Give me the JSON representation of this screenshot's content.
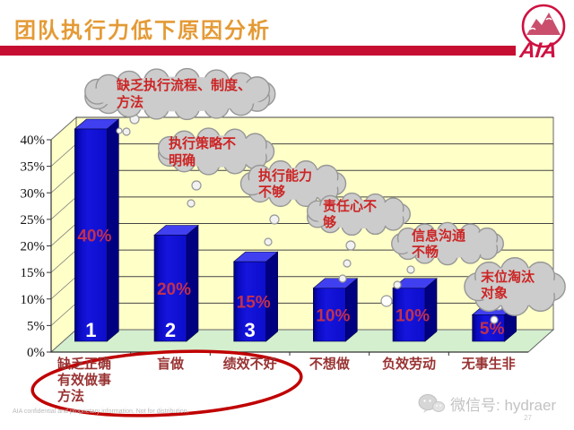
{
  "slide": {
    "title": "团队执行力低下原因分析",
    "logo_text": "AIA",
    "footer_disclaimer": "AIA confidential and proprietary information. Not for distribution.",
    "watermark_label": "微信号: hydraer",
    "page_number": "27"
  },
  "colors": {
    "title_orange": "#E49A35",
    "header_bar_red": "#C60E33",
    "logo_red": "#CE1141",
    "wall_yellow": "#FFFFC8",
    "floor_green": "#D4EFCE",
    "bar_front": "#0D0DCC",
    "bar_side": "#000080",
    "bar_top": "#4040F0",
    "value_label_red": "#C03050",
    "rank_label_white": "#FFFFFF",
    "cloud_fill": "#CCCCCC",
    "cloud_stroke": "#979797",
    "cloud_text_red": "#CC2525",
    "category_maroon": "#993333",
    "ellipse_red": "#C00000",
    "axis_line": "#333333",
    "gridline": "#444444"
  },
  "chart_data": {
    "type": "bar",
    "projection": "3d",
    "title": "",
    "xlabel": "",
    "ylabel": "",
    "ylim": [
      0,
      40
    ],
    "grid": true,
    "legend": false,
    "y_ticks": [
      "0%",
      "5%",
      "10%",
      "15%",
      "20%",
      "25%",
      "30%",
      "35%",
      "40%"
    ],
    "categories": [
      "缺乏正确\n有效做事\n方法",
      "盲做",
      "绩效不好",
      "不想做",
      "负效劳动",
      "无事生非"
    ],
    "values": [
      40,
      20,
      15,
      10,
      10,
      5
    ],
    "value_labels": [
      "40%",
      "20%",
      "15%",
      "10%",
      "10%",
      "5%"
    ],
    "rank_labels": [
      "1",
      "2",
      "3",
      "",
      "",
      ""
    ],
    "annotations": [
      {
        "bar": 1,
        "text": "缺乏执行流程、制度、\n方法"
      },
      {
        "bar": 2,
        "text": "执行策略不\n明确"
      },
      {
        "bar": 3,
        "text": "执行能力\n不够"
      },
      {
        "bar": 4,
        "text": "责任心不\n够"
      },
      {
        "bar": 5,
        "text": "信息沟通\n不畅"
      },
      {
        "bar": 6,
        "text": "末位淘汰\n对象"
      }
    ],
    "emphasis": "red ellipse around first three categories"
  }
}
